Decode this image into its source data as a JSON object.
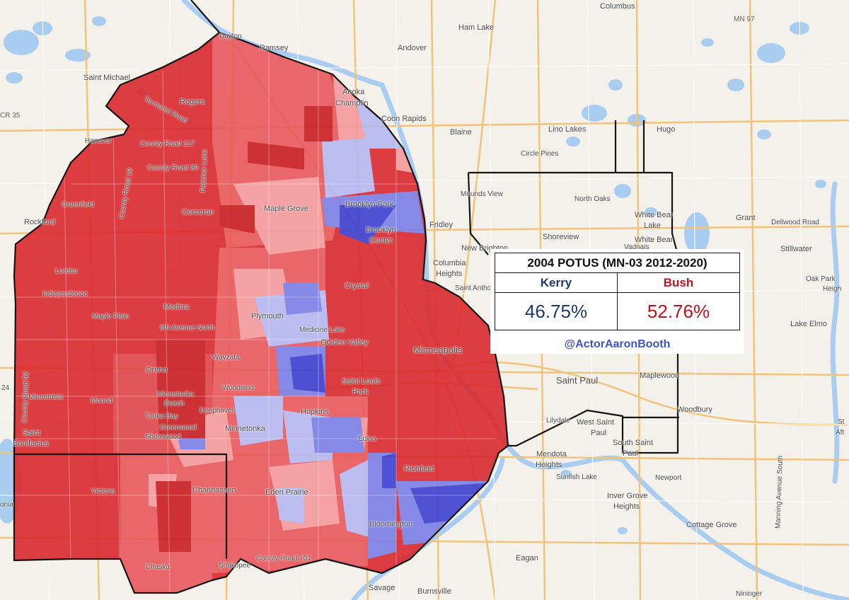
{
  "panel": {
    "title": "2004 POTUS (MN-03 2012-2020)",
    "candidates": [
      {
        "name": "Kerry",
        "pct": "46.75%",
        "color": "#1f3a73"
      },
      {
        "name": "Bush",
        "pct": "52.76%",
        "color": "#c0121c"
      }
    ],
    "handle": "@ActorAaronBooth",
    "handle_color": "#3f53c9"
  },
  "colors": {
    "strong_r": "#d9292f",
    "medium_r": "#e8585c",
    "light_r": "#f49a9c",
    "light_d": "#b5b7f0",
    "medium_d": "#7b7fe6",
    "strong_d": "#3c40cf",
    "road": "#f3c27a",
    "water": "#a9cdf0"
  },
  "places": {
    "columbus": "Columbus",
    "mn97": "MN 97",
    "ham_lake": "Ham Lake",
    "ramsey": "Ramsey",
    "andover": "Andover",
    "dayton": "Dayton",
    "saint_michael": "Saint Michael",
    "cr35": "CR 35",
    "anoka": "Anoka",
    "champlin": "Champlin",
    "coon_rapids": "Coon Rapids",
    "rogers": "Rogers",
    "territorial_road": "Territorial Road",
    "hanover": "Hanover",
    "county_road_117": "County Road 117",
    "blaine": "Blaine",
    "lino_lakes": "Lino Lakes",
    "hugo": "Hugo",
    "circle_pines": "Circle Pines",
    "county_road_30": "County Road 30",
    "county_road_19": "County Road 19",
    "fletcher_lane": "Fletcher Lane",
    "mounds_view": "Mounds View",
    "north_oaks": "North Oaks",
    "white_bear_lake": "White Bear",
    "white_bear_lake2": "Lake",
    "grant": "Grant",
    "dellwood_road": "Dellwood Road",
    "greenfield": "Greenfield",
    "corcoran": "Corcoran",
    "maple_grove": "Maple Grove",
    "brooklyn_park": "Brooklyn Park",
    "rockford": "Rockford",
    "fridley": "Fridley",
    "brooklyn_center": "Brooklyn",
    "brooklyn_center2": "Center",
    "shoreview": "Shoreview",
    "vadnais": "Vadnais",
    "white_bear2": "White Bear",
    "stillwater": "Stillwater",
    "new_brighton": "New Brighton",
    "columbia_heights": "Columbia",
    "columbia_heights2": "Heights",
    "loretto": "Loretto",
    "saint_anthony": "Saint Antho",
    "oak_park": "Oak Park",
    "oak_park2": "Heigh",
    "independence": "Independence",
    "crystal": "Crystal",
    "medina": "Medina",
    "maple_plain": "Maple Plain",
    "plymouth": "Plymouth",
    "medicine_lake": "Medicine Lake",
    "sixth_ave": "6th Avenue North",
    "lake_elmo": "Lake Elmo",
    "golden_valley": "Golden Valley",
    "minneapolis": "Minneapolis",
    "wayzata": "Wayzata",
    "orono": "Orono",
    "maplewood": "Maplewood",
    "saint_louis_park": "Saint Louis",
    "saint_louis_park2": "Park",
    "woodland": "Woodland",
    "minnetrista": "Minnetrista",
    "minnetonka_beach": "Minnetonka",
    "minnetonka_beach2": "Beach",
    "mound": "Mound",
    "saint_paul": "Saint Paul",
    "deephaven": "Deephaven",
    "hopkins": "Hopkins",
    "county_road_92": "County Road 92",
    "woodbury": "Woodbury",
    "tonka_bay": "Tonka Bay",
    "greenwood": "Greenwood",
    "shorewood": "Shorewood",
    "minnetonka": "Minnetonka",
    "lilydale": "Lilydale",
    "west_saint_paul": "West Saint",
    "west_saint_paul2": "Paul",
    "saint_bonifacius": "Saint",
    "saint_bonifacius2": "Bonifacius",
    "edina": "Edina",
    "south_saint_paul": "South Saint",
    "south_saint_paul2": "Paul",
    "mendota_heights": "Mendota",
    "mendota_heights2": "Heights",
    "richfield": "Richfield",
    "sunfish_lake": "Sunfish Lake",
    "newport": "Newport",
    "victoria": "Victoria",
    "chanhassen": "Chanhassen",
    "eden_prairie": "Eden Prairie",
    "manning_ave": "Manning Avenue South",
    "inver_grove": "Inver Grove",
    "inver_grove2": "Heights",
    "bloomington": "Bloomington",
    "cottage_grove": "Cottage Grove",
    "eagan": "Eagan",
    "chaska": "Chaska",
    "county_road_101": "County Road 101",
    "shakopee": "Shakopee",
    "savage": "Savage",
    "burnsville": "Burnsville",
    "nininger": "Nininger",
    "hwy24": "24",
    "ona": "onia",
    "st_edge": "St",
    "aft_edge": "Aft"
  }
}
